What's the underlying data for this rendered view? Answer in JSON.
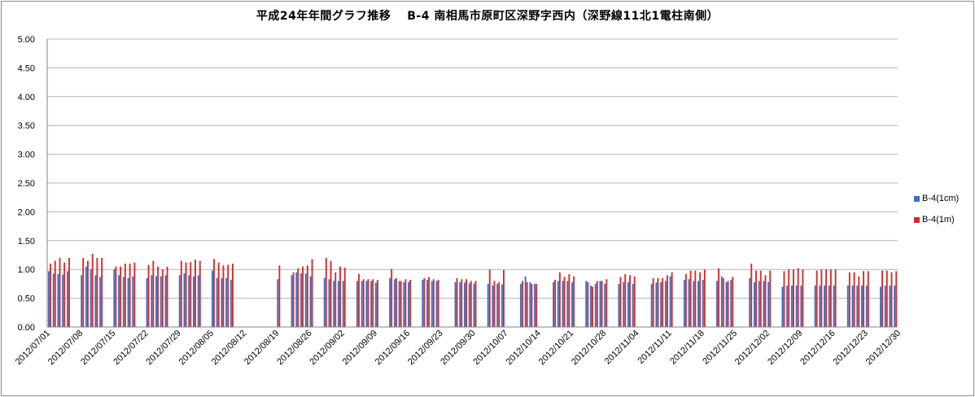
{
  "chart_data": {
    "type": "bar",
    "title": "平成24年年間グラフ推移　 B-4 南相馬市原町区深野字西内（深野線11北1電柱南側）",
    "xlabel": "",
    "ylabel": "",
    "ylim": [
      0,
      5
    ],
    "yticks": [
      "0.00",
      "0.50",
      "1.00",
      "1.50",
      "2.00",
      "2.50",
      "3.00",
      "3.50",
      "4.00",
      "4.50",
      "5.00"
    ],
    "x_range": [
      "2012/07/01",
      "2012/12/30"
    ],
    "xtick_labels": [
      "2012/07/01",
      "2012/07/08",
      "2012/07/15",
      "2012/07/22",
      "2012/07/29",
      "2012/08/05",
      "2012/08/12",
      "2012/08/19",
      "2012/08/26",
      "2012/09/02",
      "2012/09/09",
      "2012/09/16",
      "2012/09/23",
      "2012/09/30",
      "2012/10/07",
      "2012/10/14",
      "2012/10/21",
      "2012/10/28",
      "2012/11/04",
      "2012/11/11",
      "2012/11/18",
      "2012/11/25",
      "2012/12/02",
      "2012/12/09",
      "2012/12/16",
      "2012/12/23",
      "2012/12/30"
    ],
    "grid": true,
    "legend_position": "right",
    "series": [
      {
        "name": "B-4(1cm)",
        "color": "#3a6fc4",
        "points": [
          [
            "2012/07/01",
            0.97
          ],
          [
            "2012/07/02",
            0.93
          ],
          [
            "2012/07/03",
            0.92
          ],
          [
            "2012/07/04",
            0.91
          ],
          [
            "2012/07/05",
            0.97
          ],
          [
            "2012/07/08",
            0.9
          ],
          [
            "2012/07/09",
            1.05
          ],
          [
            "2012/07/10",
            1.0
          ],
          [
            "2012/07/11",
            0.9
          ],
          [
            "2012/07/12",
            0.87
          ],
          [
            "2012/07/15",
            1.0
          ],
          [
            "2012/07/16",
            0.9
          ],
          [
            "2012/07/17",
            0.87
          ],
          [
            "2012/07/18",
            0.85
          ],
          [
            "2012/07/19",
            0.88
          ],
          [
            "2012/07/22",
            0.85
          ],
          [
            "2012/07/23",
            0.9
          ],
          [
            "2012/07/24",
            0.88
          ],
          [
            "2012/07/25",
            0.88
          ],
          [
            "2012/07/26",
            0.9
          ],
          [
            "2012/07/29",
            0.9
          ],
          [
            "2012/07/30",
            0.93
          ],
          [
            "2012/07/31",
            0.9
          ],
          [
            "2012/08/01",
            0.88
          ],
          [
            "2012/08/02",
            0.9
          ],
          [
            "2012/08/05",
            0.98
          ],
          [
            "2012/08/06",
            0.85
          ],
          [
            "2012/08/07",
            0.85
          ],
          [
            "2012/08/08",
            0.85
          ],
          [
            "2012/08/09",
            0.82
          ],
          [
            "2012/08/19",
            0.83
          ],
          [
            "2012/08/22",
            0.9
          ],
          [
            "2012/08/23",
            0.95
          ],
          [
            "2012/08/24",
            0.93
          ],
          [
            "2012/08/25",
            0.93
          ],
          [
            "2012/08/26",
            0.88
          ],
          [
            "2012/08/29",
            0.85
          ],
          [
            "2012/08/30",
            0.83
          ],
          [
            "2012/08/31",
            0.8
          ],
          [
            "2012/09/01",
            0.8
          ],
          [
            "2012/09/02",
            0.8
          ],
          [
            "2012/09/05",
            0.8
          ],
          [
            "2012/09/06",
            0.8
          ],
          [
            "2012/09/07",
            0.8
          ],
          [
            "2012/09/08",
            0.8
          ],
          [
            "2012/09/09",
            0.77
          ],
          [
            "2012/09/12",
            0.85
          ],
          [
            "2012/09/13",
            0.83
          ],
          [
            "2012/09/14",
            0.8
          ],
          [
            "2012/09/15",
            0.78
          ],
          [
            "2012/09/16",
            0.78
          ],
          [
            "2012/09/19",
            0.82
          ],
          [
            "2012/09/20",
            0.82
          ],
          [
            "2012/09/21",
            0.8
          ],
          [
            "2012/09/22",
            0.8
          ],
          [
            "2012/09/26",
            0.78
          ],
          [
            "2012/09/27",
            0.78
          ],
          [
            "2012/09/28",
            0.77
          ],
          [
            "2012/09/29",
            0.76
          ],
          [
            "2012/09/30",
            0.75
          ],
          [
            "2012/10/03",
            0.75
          ],
          [
            "2012/10/04",
            0.72
          ],
          [
            "2012/10/05",
            0.75
          ],
          [
            "2012/10/06",
            0.74
          ],
          [
            "2012/10/10",
            0.75
          ],
          [
            "2012/10/11",
            0.88
          ],
          [
            "2012/10/12",
            0.78
          ],
          [
            "2012/10/13",
            0.75
          ],
          [
            "2012/10/17",
            0.78
          ],
          [
            "2012/10/18",
            0.8
          ],
          [
            "2012/10/19",
            0.8
          ],
          [
            "2012/10/20",
            0.8
          ],
          [
            "2012/10/21",
            0.78
          ],
          [
            "2012/10/24",
            0.8
          ],
          [
            "2012/10/25",
            0.72
          ],
          [
            "2012/10/26",
            0.75
          ],
          [
            "2012/10/27",
            0.8
          ],
          [
            "2012/10/28",
            0.75
          ],
          [
            "2012/10/31",
            0.75
          ],
          [
            "2012/11/01",
            0.78
          ],
          [
            "2012/11/02",
            0.78
          ],
          [
            "2012/11/03",
            0.75
          ],
          [
            "2012/11/07",
            0.75
          ],
          [
            "2012/11/08",
            0.77
          ],
          [
            "2012/11/09",
            0.78
          ],
          [
            "2012/11/10",
            0.8
          ],
          [
            "2012/11/11",
            0.88
          ],
          [
            "2012/11/14",
            0.82
          ],
          [
            "2012/11/15",
            0.83
          ],
          [
            "2012/11/16",
            0.8
          ],
          [
            "2012/11/17",
            0.8
          ],
          [
            "2012/11/18",
            0.82
          ],
          [
            "2012/11/21",
            0.8
          ],
          [
            "2012/11/22",
            0.88
          ],
          [
            "2012/11/23",
            0.78
          ],
          [
            "2012/11/24",
            0.82
          ],
          [
            "2012/11/28",
            0.85
          ],
          [
            "2012/11/29",
            0.78
          ],
          [
            "2012/11/30",
            0.8
          ],
          [
            "2012/12/01",
            0.8
          ],
          [
            "2012/12/02",
            0.78
          ],
          [
            "2012/12/05",
            0.7
          ],
          [
            "2012/12/06",
            0.72
          ],
          [
            "2012/12/07",
            0.72
          ],
          [
            "2012/12/08",
            0.72
          ],
          [
            "2012/12/09",
            0.72
          ],
          [
            "2012/12/12",
            0.72
          ],
          [
            "2012/12/13",
            0.72
          ],
          [
            "2012/12/14",
            0.72
          ],
          [
            "2012/12/15",
            0.72
          ],
          [
            "2012/12/16",
            0.72
          ],
          [
            "2012/12/19",
            0.72
          ],
          [
            "2012/12/20",
            0.72
          ],
          [
            "2012/12/21",
            0.72
          ],
          [
            "2012/12/22",
            0.72
          ],
          [
            "2012/12/23",
            0.72
          ],
          [
            "2012/12/26",
            0.7
          ],
          [
            "2012/12/27",
            0.72
          ],
          [
            "2012/12/28",
            0.72
          ],
          [
            "2012/12/29",
            0.72
          ]
        ]
      },
      {
        "name": "B-4(1m)",
        "color": "#d42c2c",
        "points": [
          [
            "2012/07/01",
            1.1
          ],
          [
            "2012/07/02",
            1.15
          ],
          [
            "2012/07/03",
            1.2
          ],
          [
            "2012/07/04",
            1.12
          ],
          [
            "2012/07/05",
            1.2
          ],
          [
            "2012/07/08",
            1.2
          ],
          [
            "2012/07/09",
            1.15
          ],
          [
            "2012/07/10",
            1.27
          ],
          [
            "2012/07/11",
            1.2
          ],
          [
            "2012/07/12",
            1.2
          ],
          [
            "2012/07/15",
            1.05
          ],
          [
            "2012/07/16",
            1.05
          ],
          [
            "2012/07/17",
            1.1
          ],
          [
            "2012/07/18",
            1.1
          ],
          [
            "2012/07/19",
            1.12
          ],
          [
            "2012/07/22",
            1.08
          ],
          [
            "2012/07/23",
            1.15
          ],
          [
            "2012/07/24",
            1.05
          ],
          [
            "2012/07/25",
            1.0
          ],
          [
            "2012/07/26",
            1.05
          ],
          [
            "2012/07/29",
            1.15
          ],
          [
            "2012/07/30",
            1.12
          ],
          [
            "2012/07/31",
            1.13
          ],
          [
            "2012/08/01",
            1.17
          ],
          [
            "2012/08/02",
            1.15
          ],
          [
            "2012/08/05",
            1.18
          ],
          [
            "2012/08/06",
            1.12
          ],
          [
            "2012/08/07",
            1.07
          ],
          [
            "2012/08/08",
            1.08
          ],
          [
            "2012/08/09",
            1.1
          ],
          [
            "2012/08/19",
            1.07
          ],
          [
            "2012/08/22",
            0.95
          ],
          [
            "2012/08/23",
            1.02
          ],
          [
            "2012/08/24",
            1.05
          ],
          [
            "2012/08/25",
            1.07
          ],
          [
            "2012/08/26",
            1.18
          ],
          [
            "2012/08/29",
            1.2
          ],
          [
            "2012/08/30",
            1.15
          ],
          [
            "2012/08/31",
            0.95
          ],
          [
            "2012/09/01",
            1.05
          ],
          [
            "2012/09/02",
            1.03
          ],
          [
            "2012/09/05",
            0.92
          ],
          [
            "2012/09/06",
            0.83
          ],
          [
            "2012/09/07",
            0.83
          ],
          [
            "2012/09/08",
            0.83
          ],
          [
            "2012/09/09",
            0.82
          ],
          [
            "2012/09/12",
            1.01
          ],
          [
            "2012/09/13",
            0.85
          ],
          [
            "2012/09/14",
            0.8
          ],
          [
            "2012/09/15",
            0.83
          ],
          [
            "2012/09/16",
            0.82
          ],
          [
            "2012/09/19",
            0.85
          ],
          [
            "2012/09/20",
            0.87
          ],
          [
            "2012/09/21",
            0.83
          ],
          [
            "2012/09/22",
            0.82
          ],
          [
            "2012/09/26",
            0.85
          ],
          [
            "2012/09/27",
            0.83
          ],
          [
            "2012/09/28",
            0.83
          ],
          [
            "2012/09/29",
            0.8
          ],
          [
            "2012/09/30",
            0.8
          ],
          [
            "2012/10/03",
            1.0
          ],
          [
            "2012/10/04",
            0.8
          ],
          [
            "2012/10/05",
            0.78
          ],
          [
            "2012/10/06",
            0.99
          ],
          [
            "2012/10/10",
            0.8
          ],
          [
            "2012/10/11",
            0.78
          ],
          [
            "2012/10/12",
            0.75
          ],
          [
            "2012/10/13",
            0.75
          ],
          [
            "2012/10/17",
            0.82
          ],
          [
            "2012/10/18",
            0.95
          ],
          [
            "2012/10/19",
            0.87
          ],
          [
            "2012/10/20",
            0.92
          ],
          [
            "2012/10/21",
            0.88
          ],
          [
            "2012/10/24",
            0.78
          ],
          [
            "2012/10/25",
            0.7
          ],
          [
            "2012/10/26",
            0.8
          ],
          [
            "2012/10/27",
            0.8
          ],
          [
            "2012/10/28",
            0.83
          ],
          [
            "2012/10/31",
            0.87
          ],
          [
            "2012/11/01",
            0.92
          ],
          [
            "2012/11/02",
            0.9
          ],
          [
            "2012/11/03",
            0.88
          ],
          [
            "2012/11/07",
            0.85
          ],
          [
            "2012/11/08",
            0.85
          ],
          [
            "2012/11/09",
            0.85
          ],
          [
            "2012/11/10",
            0.9
          ],
          [
            "2012/11/11",
            0.95
          ],
          [
            "2012/11/14",
            0.92
          ],
          [
            "2012/11/15",
            0.98
          ],
          [
            "2012/11/16",
            0.98
          ],
          [
            "2012/11/17",
            0.95
          ],
          [
            "2012/11/18",
            1.0
          ],
          [
            "2012/11/21",
            1.02
          ],
          [
            "2012/11/22",
            0.85
          ],
          [
            "2012/11/23",
            0.8
          ],
          [
            "2012/11/24",
            0.87
          ],
          [
            "2012/11/28",
            1.1
          ],
          [
            "2012/11/29",
            0.98
          ],
          [
            "2012/11/30",
            0.98
          ],
          [
            "2012/12/01",
            0.9
          ],
          [
            "2012/12/02",
            0.98
          ],
          [
            "2012/12/05",
            0.97
          ],
          [
            "2012/12/06",
            1.0
          ],
          [
            "2012/12/07",
            1.0
          ],
          [
            "2012/12/08",
            1.02
          ],
          [
            "2012/12/09",
            1.0
          ],
          [
            "2012/12/12",
            0.98
          ],
          [
            "2012/12/13",
            1.0
          ],
          [
            "2012/12/14",
            1.0
          ],
          [
            "2012/12/15",
            1.0
          ],
          [
            "2012/12/16",
            1.0
          ],
          [
            "2012/12/19",
            0.95
          ],
          [
            "2012/12/20",
            0.95
          ],
          [
            "2012/12/21",
            0.88
          ],
          [
            "2012/12/22",
            0.97
          ],
          [
            "2012/12/23",
            0.97
          ],
          [
            "2012/12/26",
            0.98
          ],
          [
            "2012/12/27",
            0.98
          ],
          [
            "2012/12/28",
            0.95
          ],
          [
            "2012/12/29",
            0.97
          ]
        ]
      }
    ]
  }
}
